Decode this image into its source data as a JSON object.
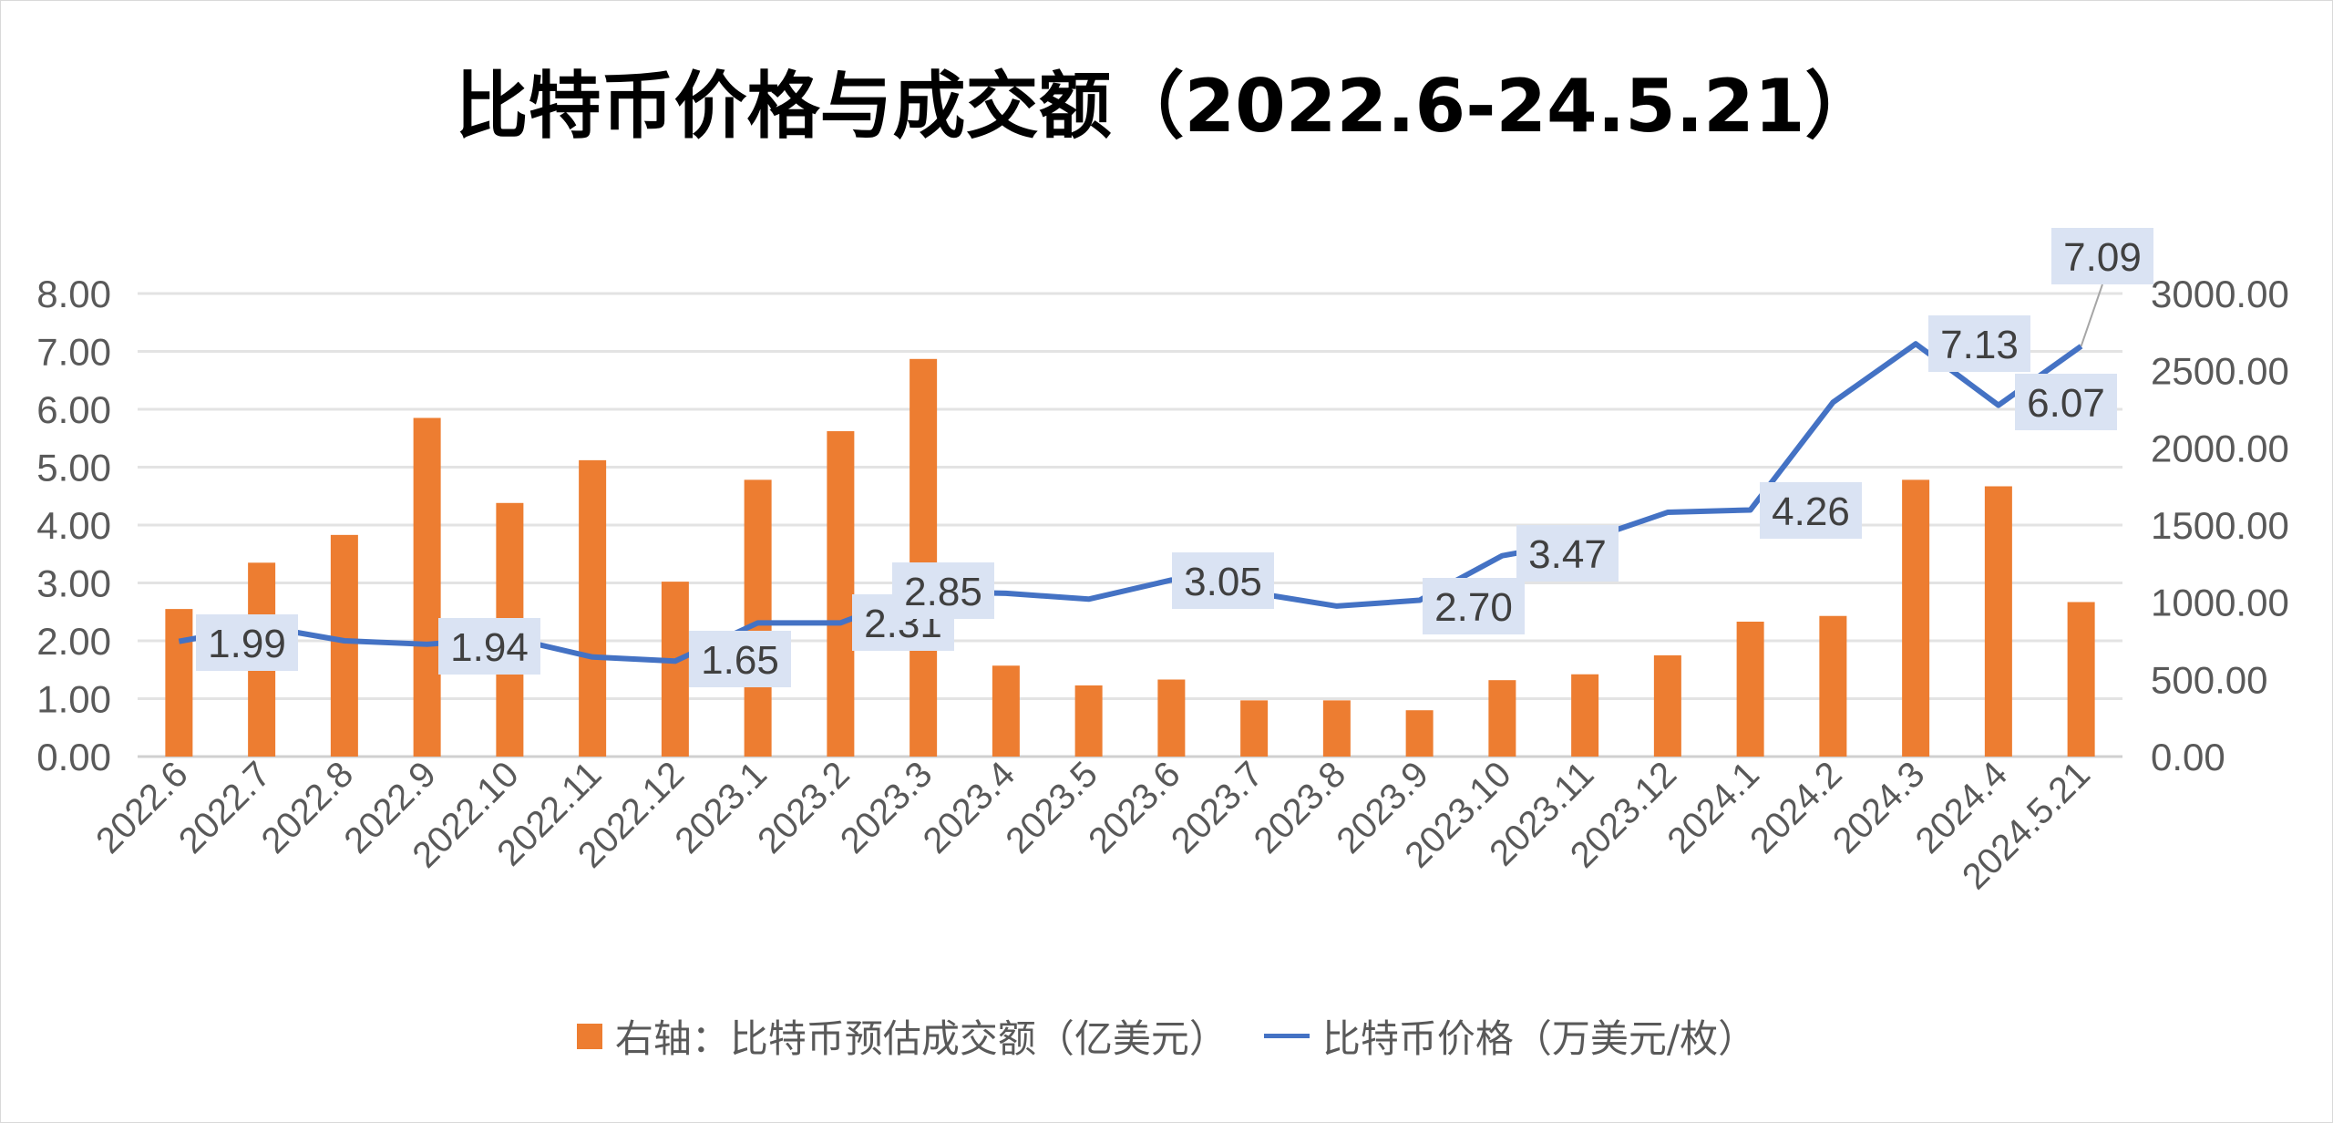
{
  "chart_data": {
    "type": "bar+line",
    "title": "比特币价格与成交额（2022.6-24.5.21）",
    "categories": [
      "2022.6",
      "2022.7",
      "2022.8",
      "2022.9",
      "2022.10",
      "2022.11",
      "2022.12",
      "2023.1",
      "2023.2",
      "2023.3",
      "2023.4",
      "2023.5",
      "2023.6",
      "2023.7",
      "2023.8",
      "2023.9",
      "2023.10",
      "2023.11",
      "2023.12",
      "2024.1",
      "2024.2",
      "2024.3",
      "2024.4",
      "2024.5.21"
    ],
    "series": [
      {
        "name": "右轴：比特币预估成交额（亿美元）",
        "type": "bar",
        "axis": "right",
        "color": "#ED7D31",
        "values": [
          956,
          1256,
          1436,
          2194,
          1643,
          1920,
          1133,
          1793,
          2108,
          2576,
          589,
          461,
          499,
          364,
          364,
          300,
          495,
          533,
          656,
          874,
          911,
          1793,
          1751,
          1001
        ]
      },
      {
        "name": "比特币价格（万美元/枚）",
        "type": "line",
        "axis": "left",
        "color": "#4472C4",
        "values": [
          1.99,
          2.25,
          2.0,
          1.94,
          2.05,
          1.72,
          1.65,
          2.31,
          2.31,
          2.85,
          2.82,
          2.72,
          3.05,
          2.83,
          2.6,
          2.7,
          3.47,
          3.73,
          4.22,
          4.26,
          6.12,
          7.13,
          6.07,
          7.09
        ]
      }
    ],
    "data_labels": [
      {
        "index": 0,
        "text": "1.99"
      },
      {
        "index": 3,
        "text": "1.94"
      },
      {
        "index": 6,
        "text": "1.65"
      },
      {
        "index": 8,
        "text": "2.31"
      },
      {
        "index": 9,
        "text": "2.85"
      },
      {
        "index": 12,
        "text": "3.05"
      },
      {
        "index": 15,
        "text": "2.70"
      },
      {
        "index": 16,
        "text": "3.47"
      },
      {
        "index": 19,
        "text": "4.26"
      },
      {
        "index": 21,
        "text": "7.13"
      },
      {
        "index": 22,
        "text": "6.07"
      },
      {
        "index": 23,
        "text": "7.09"
      }
    ],
    "left_axis": {
      "ylim": [
        0,
        8
      ],
      "ticks": [
        "0.00",
        "1.00",
        "2.00",
        "3.00",
        "4.00",
        "5.00",
        "6.00",
        "7.00",
        "8.00"
      ]
    },
    "right_axis": {
      "ylim": [
        0,
        3000
      ],
      "ticks": [
        "0.00",
        "500.00",
        "1000.00",
        "1500.00",
        "2000.00",
        "2500.00",
        "3000.00"
      ]
    },
    "grid": true,
    "legend_position": "bottom",
    "label_box_color": "#DAE3F3"
  }
}
